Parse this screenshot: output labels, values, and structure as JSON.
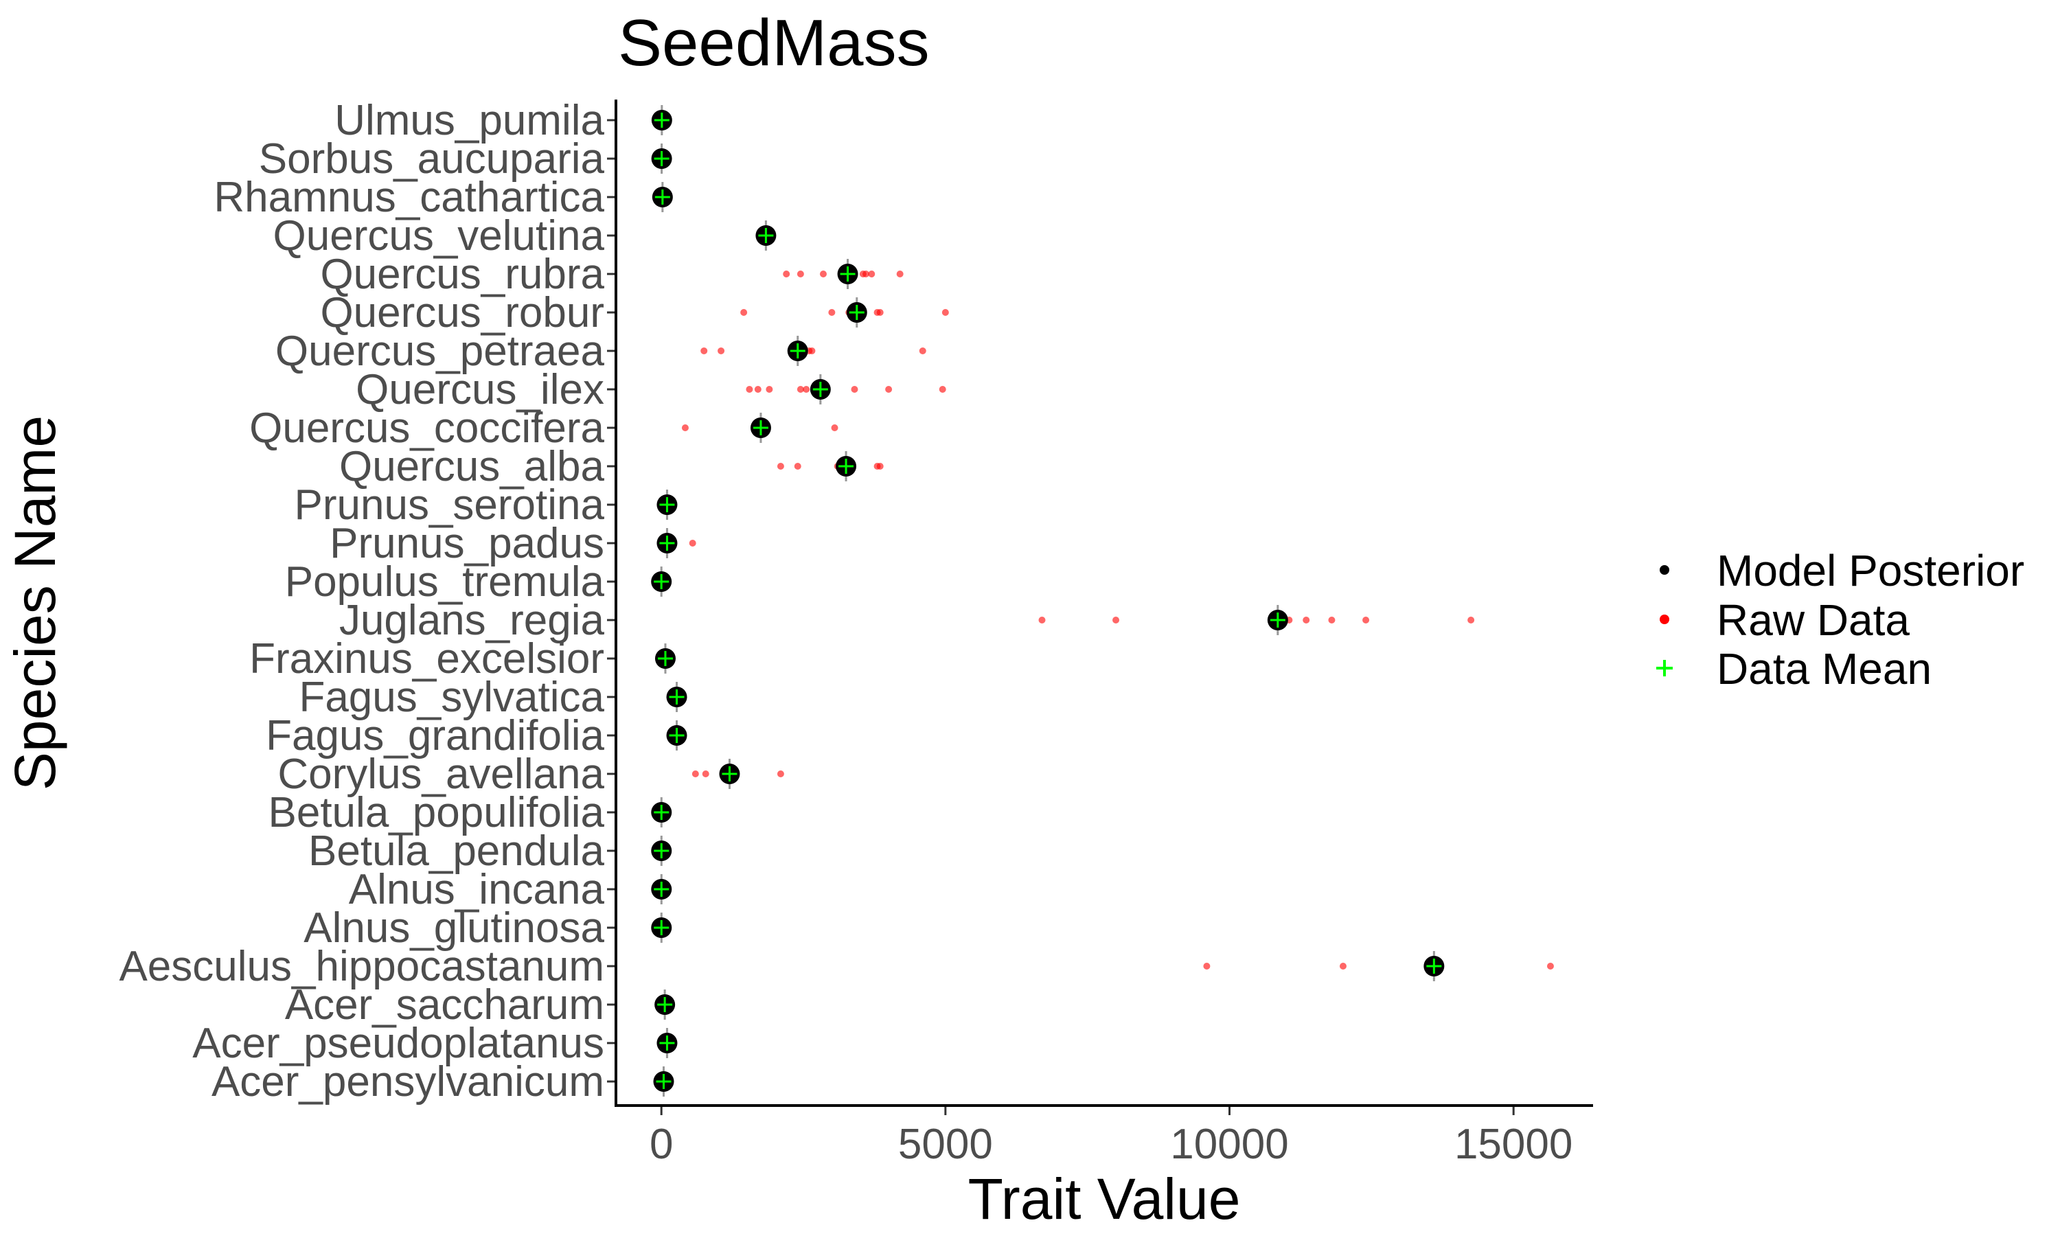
{
  "chart_data": {
    "type": "scatter",
    "title": "SeedMass",
    "xlabel": "Trait Value",
    "ylabel": "Species Name",
    "xlim": [
      -800,
      16400
    ],
    "x_ticks": [
      0,
      5000,
      10000,
      15000
    ],
    "x_tick_labels": [
      "0",
      "5000",
      "10000",
      "15000"
    ],
    "grid": false,
    "legend": {
      "position": "right",
      "entries": [
        {
          "label": "Model Posterior",
          "color": "#000000",
          "shape": "dot"
        },
        {
          "label": "Raw Data",
          "color": "#ff0000",
          "shape": "dot"
        },
        {
          "label": "Data Mean",
          "color": "#00ff00",
          "shape": "plus"
        }
      ]
    },
    "colors": {
      "posterior": "#000000",
      "raw": "#ff0000",
      "mean": "#00ff00",
      "interval": "#999999"
    },
    "species": [
      {
        "name": "Ulmus_pumila",
        "posterior": 8,
        "mean": 8,
        "raw": []
      },
      {
        "name": "Sorbus_aucuparia",
        "posterior": 5,
        "mean": 5,
        "raw": []
      },
      {
        "name": "Rhamnus_cathartica",
        "posterior": 20,
        "mean": 20,
        "raw": []
      },
      {
        "name": "Quercus_velutina",
        "posterior": 1840,
        "mean": 1840,
        "raw": []
      },
      {
        "name": "Quercus_rubra",
        "posterior": 3280,
        "mean": 3280,
        "raw": [
          2200,
          2450,
          2850,
          3200,
          3550,
          3600,
          3700,
          4200
        ]
      },
      {
        "name": "Quercus_robur",
        "posterior": 3440,
        "mean": 3440,
        "raw": [
          1450,
          3000,
          3300,
          3500,
          3800,
          3850,
          5000
        ]
      },
      {
        "name": "Quercus_petraea",
        "posterior": 2400,
        "mean": 2400,
        "raw": [
          750,
          1050,
          2600,
          2650,
          4600
        ]
      },
      {
        "name": "Quercus_ilex",
        "posterior": 2800,
        "mean": 2800,
        "raw": [
          1550,
          1700,
          1900,
          2450,
          2550,
          3400,
          4000,
          4950
        ]
      },
      {
        "name": "Quercus_coccifera",
        "posterior": 1750,
        "mean": 1750,
        "raw": [
          420,
          3050
        ]
      },
      {
        "name": "Quercus_alba",
        "posterior": 3250,
        "mean": 3250,
        "raw": [
          2100,
          2400,
          3100,
          3800,
          3850
        ]
      },
      {
        "name": "Prunus_serotina",
        "posterior": 100,
        "mean": 100,
        "raw": []
      },
      {
        "name": "Prunus_padus",
        "posterior": 100,
        "mean": 100,
        "raw": [
          550
        ]
      },
      {
        "name": "Populus_tremula",
        "posterior": 0,
        "mean": 0,
        "raw": []
      },
      {
        "name": "Juglans_regia",
        "posterior": 10850,
        "mean": 10850,
        "raw": [
          6700,
          8000,
          11050,
          11350,
          11800,
          12400,
          14250
        ]
      },
      {
        "name": "Fraxinus_excelsior",
        "posterior": 70,
        "mean": 70,
        "raw": []
      },
      {
        "name": "Fagus_sylvatica",
        "posterior": 270,
        "mean": 270,
        "raw": []
      },
      {
        "name": "Fagus_grandifolia",
        "posterior": 270,
        "mean": 270,
        "raw": []
      },
      {
        "name": "Corylus_avellana",
        "posterior": 1200,
        "mean": 1200,
        "raw": [
          600,
          780,
          2100
        ]
      },
      {
        "name": "Betula_populifolia",
        "posterior": 1,
        "mean": 1,
        "raw": []
      },
      {
        "name": "Betula_pendula",
        "posterior": 1,
        "mean": 1,
        "raw": []
      },
      {
        "name": "Alnus_incana",
        "posterior": 1,
        "mean": 1,
        "raw": []
      },
      {
        "name": "Alnus_glutinosa",
        "posterior": 1,
        "mean": 1,
        "raw": []
      },
      {
        "name": "Aesculus_hippocastanum",
        "posterior": 13600,
        "mean": 13600,
        "raw": [
          9600,
          12000,
          15650
        ]
      },
      {
        "name": "Acer_saccharum",
        "posterior": 60,
        "mean": 60,
        "raw": []
      },
      {
        "name": "Acer_pseudoplatanus",
        "posterior": 100,
        "mean": 100,
        "raw": []
      },
      {
        "name": "Acer_pensylvanicum",
        "posterior": 40,
        "mean": 40,
        "raw": []
      }
    ]
  }
}
